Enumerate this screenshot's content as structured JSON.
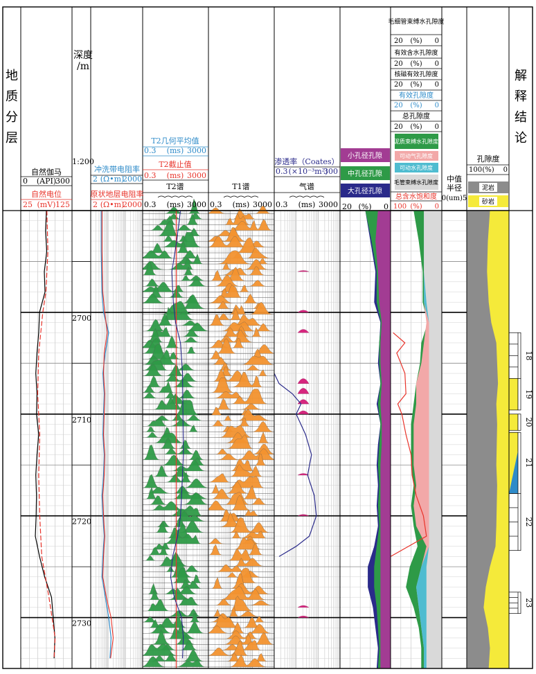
{
  "colors": {
    "gr": "#000000",
    "sp": "#e8332a",
    "rxo": "#2e8bc9",
    "rt": "#e8332a",
    "t2g": "#2e8bc9",
    "t2c": "#e8332a",
    "t2": "#2e9a47",
    "t1": "#f2922f",
    "gas": "#d6267e",
    "perm": "#2a2a8a",
    "small": "#a23c93",
    "mid": "#2e9a47",
    "large": "#2a2a8a",
    "clay": "#2e9a47",
    "movgas": "#f2a8a8",
    "movwat": "#4fbcd0",
    "capb": "#d9d9d9",
    "shale": "#8c8c8c",
    "sand": "#f5ea3a"
  },
  "headers": {
    "formation": [
      "地",
      "质",
      "分",
      "层"
    ],
    "depth_title": "深度",
    "depth_unit": "/m",
    "scale": "1:200",
    "track1": {
      "gr_name": "自然伽马",
      "gr_min": "0",
      "gr_unit": "(API)",
      "gr_max": "300",
      "sp_name": "自然电位",
      "sp_min": "25",
      "sp_unit": "(mV)",
      "sp_max": "125"
    },
    "track2": {
      "rxo_name": "冲洗带电阻率",
      "rxo_min": "2",
      "rxo_unit": "(Ω•m)",
      "rxo_max": "2000",
      "rt_name": "原状地层电阻率",
      "rt_min": "2",
      "rt_unit": "(Ω•m)",
      "rt_max": "2000"
    },
    "track3": {
      "t2g_name": "T2几何平均值",
      "t2g_min": "0.3",
      "t2g_unit": "(ms)",
      "t2g_max": "3000",
      "t2c_name": "T2截止值",
      "t2c_min": "0.3",
      "t2c_unit": "(ms)",
      "t2c_max": "3000",
      "t2_name": "T2谱",
      "t2_min": "0.3",
      "t2_unit": "(ms)",
      "t2_max": "3000"
    },
    "track4": {
      "t1_name": "T1谱",
      "t1_min": "0.3",
      "t1_unit": "(ms)",
      "t1_max": "3000"
    },
    "track5": {
      "perm_name": "渗透率（Coates）",
      "perm_min": "0.3",
      "perm_unit": "(×10⁻³m²)",
      "perm_max": "300",
      "gas_name": "气谱",
      "gas_min": "0.3",
      "gas_unit": "(ms)",
      "gas_max": "3000"
    },
    "track6": {
      "small": "小孔径孔隙",
      "mid": "中孔径孔隙",
      "large": "大孔径孔隙",
      "min": "20",
      "unit": "(%)",
      "max": "0"
    },
    "track7": {
      "capb_name": "毛细管束缚水孔隙度",
      "eff_water_name": "有效含水孔隙度",
      "nmr_eff_name": "核磁有效孔隙度",
      "eff_por_name": "有效孔隙度",
      "tot_por_name": "总孔隙度",
      "scale_min": "20",
      "scale_unit": "(%)",
      "scale_max": "0",
      "leg_clay": "泥质束缚水孔隙度",
      "leg_movgas": "可动气孔隙度",
      "leg_movwat": "可动水孔隙度",
      "leg_capb": "毛管束缚水孔隙度",
      "sw_name": "总含水饱和度",
      "sw_min": "100",
      "sw_unit": "(%)",
      "sw_max": "0"
    },
    "track8": {
      "name1": "中值",
      "name2": "半径",
      "scale": "0(um)5"
    },
    "track9": {
      "name": "孔隙度",
      "min": "100",
      "unit": "(%)",
      "max": "0",
      "leg_shale": "泥岩",
      "leg_sand": "砂岩"
    },
    "track10": {
      "title": [
        "解",
        "释",
        "结",
        "论"
      ]
    }
  },
  "chart_data": {
    "type": "well-log",
    "depth_range": [
      2690,
      2735
    ],
    "depth_ticks": [
      2700,
      2710,
      2720,
      2730
    ],
    "gr": {
      "depth": [
        2690,
        2692,
        2694,
        2696,
        2698,
        2700,
        2702,
        2704,
        2706,
        2708,
        2710,
        2712,
        2714,
        2716,
        2718,
        2720,
        2722,
        2724,
        2726,
        2728,
        2730,
        2732,
        2734
      ],
      "values": [
        150,
        145,
        152,
        138,
        142,
        110,
        105,
        95,
        88,
        95,
        92,
        105,
        95,
        88,
        92,
        90,
        85,
        110,
        140,
        180,
        190,
        200,
        195
      ]
    },
    "sp": {
      "depth": [
        2690,
        2694,
        2698,
        2700,
        2704,
        2708,
        2712,
        2716,
        2720,
        2724,
        2728,
        2732,
        2734
      ],
      "values": [
        76,
        78,
        74,
        68,
        60,
        58,
        62,
        60,
        62,
        66,
        80,
        92,
        90
      ]
    },
    "rxo": {
      "depth": [
        2690,
        2694,
        2698,
        2700,
        2702,
        2704,
        2706,
        2708,
        2710,
        2712,
        2714,
        2716,
        2718,
        2720,
        2722,
        2724,
        2726,
        2728,
        2730,
        2732,
        2734
      ],
      "values": [
        8,
        8,
        9,
        11,
        22,
        14,
        10,
        12,
        11,
        10,
        12,
        11,
        9,
        10,
        12,
        10,
        9,
        14,
        22,
        30,
        26
      ]
    },
    "rt": {
      "depth": [
        2690,
        2694,
        2698,
        2700,
        2702,
        2704,
        2706,
        2708,
        2710,
        2712,
        2714,
        2716,
        2718,
        2720,
        2722,
        2724,
        2726,
        2728,
        2730,
        2732,
        2734
      ],
      "values": [
        9,
        9,
        10,
        13,
        18,
        12,
        11,
        13,
        12,
        11,
        13,
        12,
        10,
        11,
        13,
        11,
        10,
        16,
        30,
        40,
        28
      ]
    },
    "t2_cutoff": {
      "depth": [
        2690,
        2735
      ],
      "values": [
        33,
        33
      ]
    },
    "t2_gm": {
      "depth": [
        2690,
        2693,
        2696,
        2699,
        2701,
        2703,
        2706,
        2710,
        2714,
        2718,
        2720,
        2722,
        2724,
        2726,
        2728,
        2730,
        2732,
        2734
      ],
      "values": [
        60,
        35,
        18,
        22,
        30,
        60,
        80,
        85,
        90,
        70,
        60,
        40,
        20,
        15,
        25,
        70,
        90,
        80
      ]
    },
    "permeability": {
      "depth": [
        2706,
        2707,
        2708,
        2709,
        2710,
        2712,
        2714,
        2716,
        2718,
        2720,
        2722,
        2723,
        2724
      ],
      "values": [
        0.3,
        0.5,
        2.0,
        5.0,
        3.0,
        8.0,
        15.0,
        10.0,
        20.0,
        25.0,
        12.0,
        3.0,
        0.5
      ]
    },
    "gas_spectrum_peaks": {
      "depth": [
        2696,
        2700,
        2702,
        2707,
        2708,
        2709,
        2710,
        2716,
        2720,
        2729,
        2730
      ],
      "amp": [
        0.2,
        0.4,
        0.6,
        0.9,
        1.0,
        0.8,
        0.6,
        0.3,
        0.25,
        0.35,
        0.3
      ]
    },
    "pore_partition": {
      "depth": [
        2690,
        2693,
        2696,
        2699,
        2701,
        2703,
        2705,
        2707,
        2709,
        2711,
        2713,
        2715,
        2717,
        2719,
        2721,
        2723,
        2725,
        2727,
        2729,
        2731,
        2733,
        2735
      ],
      "small": [
        5,
        6,
        5,
        4.5,
        3.5,
        4,
        4,
        3.5,
        4,
        3.5,
        3.5,
        4,
        4,
        4,
        4,
        4,
        4,
        4,
        4,
        4,
        4,
        4
      ],
      "mid": [
        10,
        7.5,
        5.5,
        5.5,
        3.8,
        4.5,
        4.5,
        4,
        5,
        4,
        4.5,
        5,
        4.5,
        5,
        4.5,
        5.5,
        6.5,
        6.5,
        5.5,
        5,
        4.5,
        5
      ],
      "large": [
        10,
        8,
        6,
        6.5,
        4,
        4.5,
        5,
        4,
        5.5,
        4,
        5,
        5.5,
        5,
        5.5,
        5,
        6.5,
        9,
        9,
        7,
        6,
        5,
        5.5
      ]
    },
    "porosity_partition": {
      "depth": [
        2690,
        2693,
        2696,
        2699,
        2701,
        2703,
        2705,
        2707,
        2709,
        2711,
        2713,
        2715,
        2717,
        2719,
        2721,
        2723,
        2725,
        2727,
        2729,
        2731,
        2733,
        2735
      ],
      "capb": [
        7,
        7,
        7,
        6,
        5,
        5,
        5,
        5,
        5,
        5,
        5,
        5,
        5,
        5,
        5,
        5,
        6,
        6,
        6,
        6,
        6,
        6
      ],
      "movwat": [
        7,
        7,
        7,
        7,
        5,
        5,
        5,
        5,
        5,
        5,
        5,
        5,
        5,
        5,
        5,
        5,
        8,
        10,
        9,
        8,
        7,
        7
      ],
      "movgas": [
        7,
        7,
        7,
        7,
        6,
        7,
        8,
        10,
        10,
        11,
        11,
        11,
        10,
        11,
        10,
        6,
        8,
        10,
        9,
        8,
        7,
        7
      ],
      "total": [
        11,
        9,
        7.5,
        7.5,
        5.5,
        8,
        8.5,
        10,
        11,
        12,
        12,
        12,
        11,
        12,
        11,
        9.5,
        12.5,
        14,
        11,
        9,
        8,
        8
      ]
    },
    "sw": {
      "depth": [
        2702,
        2703,
        2704,
        2706,
        2708,
        2709,
        2710,
        2712,
        2714,
        2716,
        2718,
        2720,
        2722,
        2724
      ],
      "values": [
        95,
        72,
        88,
        72,
        70,
        86,
        78,
        70,
        60,
        58,
        50,
        36,
        30,
        100
      ]
    },
    "lithology_porosity": {
      "depth": [
        2690,
        2693,
        2696,
        2699,
        2701,
        2703,
        2705,
        2707,
        2709,
        2711,
        2713,
        2715,
        2717,
        2719,
        2721,
        2723,
        2725,
        2727,
        2729,
        2731,
        2733,
        2735
      ],
      "shale": [
        55,
        50,
        48,
        52,
        58,
        70,
        72,
        74,
        70,
        72,
        71,
        70,
        72,
        71,
        70,
        68,
        55,
        45,
        40,
        50,
        55,
        52
      ]
    },
    "intervals": [
      {
        "label": "18",
        "top": 2702,
        "bottom": 2706.5,
        "type": "none"
      },
      {
        "label": "19",
        "top": 2706.5,
        "bottom": 2709.6,
        "type": "sand"
      },
      {
        "label": "20",
        "top": 2710,
        "bottom": 2711.6,
        "type": "sand"
      },
      {
        "label": "21",
        "top": 2711.8,
        "bottom": 2717.8,
        "type": "water"
      },
      {
        "label": "22",
        "top": 2717.8,
        "bottom": 2723.4,
        "type": "none"
      },
      {
        "label": "23",
        "top": 2727.5,
        "bottom": 2729.6,
        "type": "none"
      }
    ]
  }
}
